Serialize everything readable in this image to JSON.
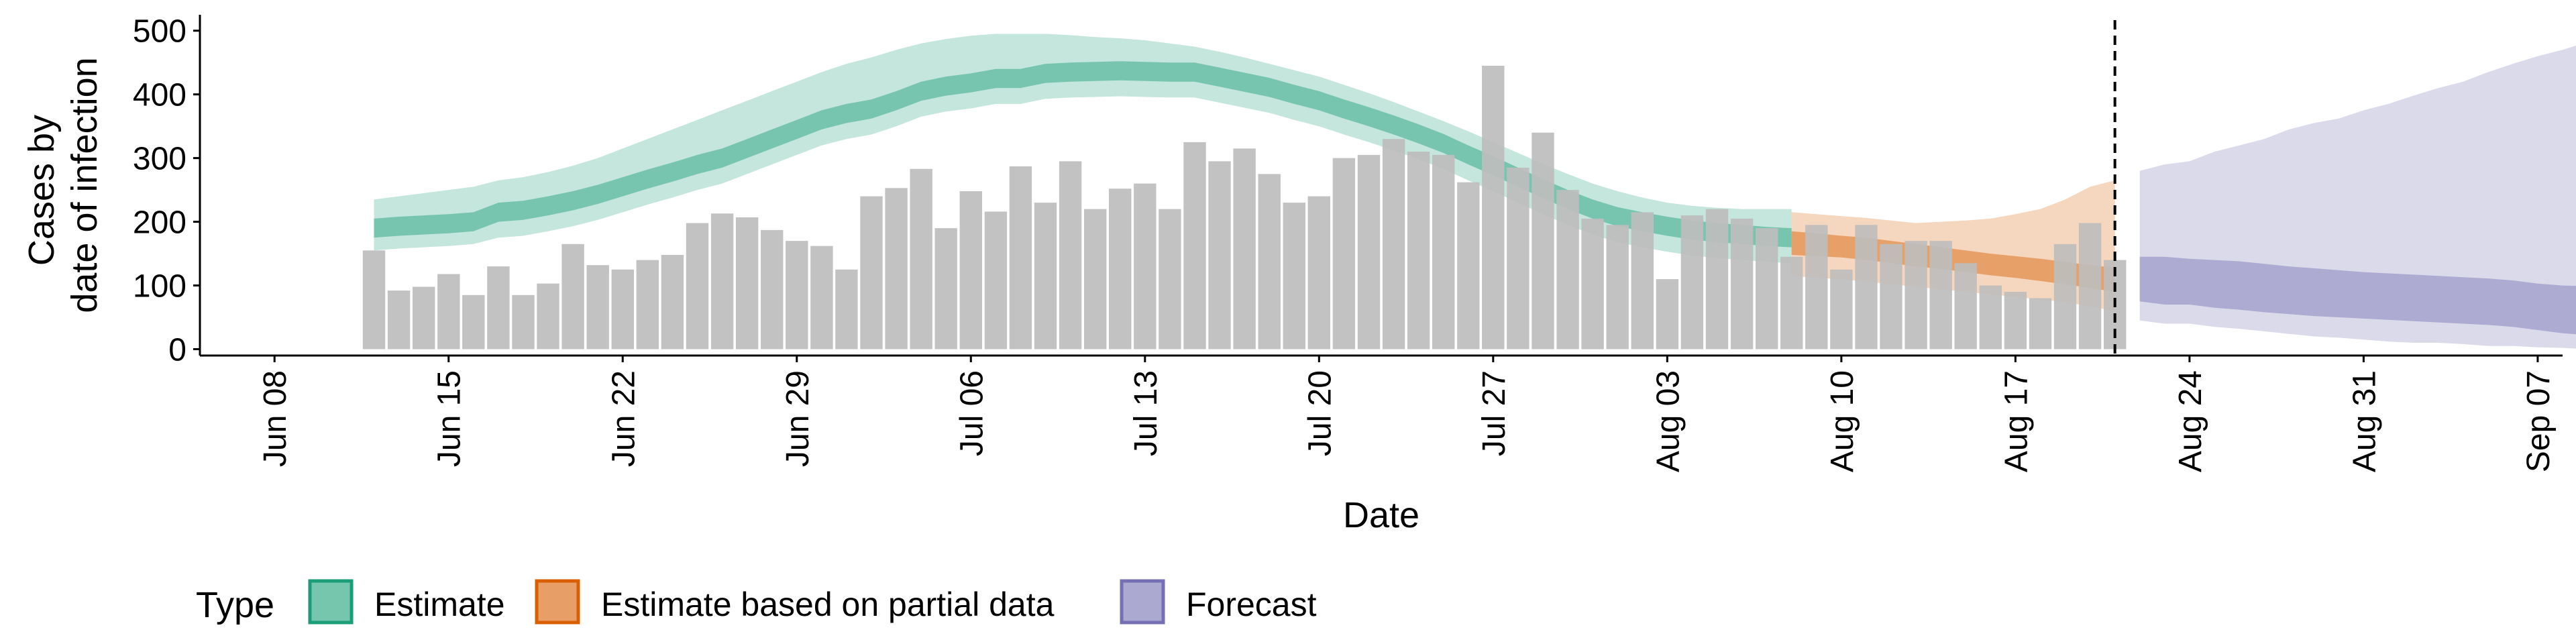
{
  "chart_data": {
    "type": "bar",
    "title": "",
    "xlabel": "Date",
    "ylabel_lines": [
      "Cases by",
      "date of infection"
    ],
    "ylim": [
      -10,
      525
    ],
    "xlim": [
      "2020-06-05",
      "2020-09-08"
    ],
    "y_ticks": [
      0,
      100,
      200,
      300,
      400,
      500
    ],
    "x_ticks": [
      {
        "date": "2020-06-08",
        "label": "Jun 08"
      },
      {
        "date": "2020-06-15",
        "label": "Jun 15"
      },
      {
        "date": "2020-06-22",
        "label": "Jun 22"
      },
      {
        "date": "2020-06-29",
        "label": "Jun 29"
      },
      {
        "date": "2020-07-06",
        "label": "Jul 06"
      },
      {
        "date": "2020-07-13",
        "label": "Jul 13"
      },
      {
        "date": "2020-07-20",
        "label": "Jul 20"
      },
      {
        "date": "2020-07-27",
        "label": "Jul 27"
      },
      {
        "date": "2020-08-03",
        "label": "Aug 03"
      },
      {
        "date": "2020-08-10",
        "label": "Aug 10"
      },
      {
        "date": "2020-08-17",
        "label": "Aug 17"
      },
      {
        "date": "2020-08-24",
        "label": "Aug 24"
      },
      {
        "date": "2020-08-31",
        "label": "Aug 31"
      },
      {
        "date": "2020-09-07",
        "label": "Sep 07"
      }
    ],
    "vline_date": "2020-08-21",
    "bars": {
      "start_date": "2020-06-12",
      "color": "#bdbdbd",
      "values": [
        155,
        92,
        98,
        118,
        85,
        130,
        85,
        103,
        165,
        132,
        125,
        140,
        148,
        198,
        213,
        207,
        187,
        170,
        162,
        125,
        240,
        253,
        283,
        190,
        248,
        216,
        287,
        230,
        295,
        220,
        252,
        260,
        220,
        325,
        295,
        315,
        275,
        230,
        240,
        300,
        305,
        330,
        310,
        305,
        262,
        445,
        285,
        340,
        250,
        205,
        195,
        215,
        110,
        210,
        220,
        205,
        190,
        145,
        195,
        125,
        195,
        165,
        170,
        170,
        135,
        100,
        90,
        80,
        165,
        198,
        140
      ]
    },
    "legend": {
      "title": "Type",
      "placement": "bottom-left",
      "items": [
        {
          "label": "Estimate",
          "fill": "#1b9e77",
          "border": "#1b9e77"
        },
        {
          "label": "Estimate based on partial data",
          "fill": "#d95f02",
          "border": "#d95f02"
        },
        {
          "label": "Forecast",
          "fill": "#7570b3",
          "border": "#7570b3"
        }
      ]
    },
    "series": [
      {
        "name": "Estimate",
        "color": "#1b9e77",
        "start_date": "2020-06-12",
        "inner_lo": [
          175,
          178,
          180,
          182,
          185,
          200,
          203,
          210,
          218,
          228,
          240,
          252,
          263,
          275,
          285,
          300,
          315,
          330,
          345,
          355,
          362,
          375,
          390,
          398,
          403,
          410,
          410,
          418,
          420,
          421,
          422,
          421,
          420,
          420,
          412,
          404,
          396,
          385,
          375,
          362,
          350,
          337,
          323,
          308,
          290,
          273,
          255,
          237,
          220,
          205,
          193,
          185,
          178,
          172,
          168,
          165,
          162,
          160
        ],
        "inner_hi": [
          205,
          208,
          210,
          212,
          215,
          230,
          233,
          240,
          248,
          258,
          270,
          282,
          293,
          305,
          315,
          330,
          345,
          360,
          375,
          385,
          392,
          405,
          420,
          428,
          433,
          440,
          440,
          448,
          450,
          451,
          452,
          451,
          450,
          450,
          442,
          434,
          426,
          415,
          405,
          392,
          380,
          367,
          353,
          338,
          320,
          303,
          285,
          267,
          250,
          235,
          223,
          215,
          208,
          202,
          198,
          195,
          192,
          190
        ],
        "outer_lo": [
          155,
          158,
          160,
          162,
          165,
          175,
          178,
          185,
          193,
          203,
          215,
          227,
          238,
          250,
          260,
          275,
          290,
          305,
          320,
          330,
          337,
          350,
          365,
          373,
          378,
          385,
          385,
          393,
          395,
          396,
          397,
          396,
          395,
          395,
          387,
          379,
          371,
          360,
          350,
          337,
          325,
          312,
          298,
          283,
          265,
          248,
          230,
          212,
          195,
          180,
          168,
          160,
          153,
          147,
          143,
          140,
          137,
          135
        ],
        "outer_hi": [
          235,
          240,
          245,
          250,
          255,
          265,
          270,
          278,
          288,
          300,
          315,
          330,
          345,
          360,
          375,
          390,
          405,
          420,
          435,
          448,
          458,
          470,
          480,
          487,
          492,
          495,
          495,
          495,
          493,
          490,
          488,
          485,
          480,
          475,
          467,
          458,
          448,
          438,
          428,
          415,
          402,
          388,
          373,
          358,
          342,
          325,
          308,
          291,
          275,
          260,
          248,
          238,
          230,
          225,
          222,
          220,
          220,
          220
        ]
      },
      {
        "name": "Estimate based on partial data",
        "color": "#d95f02",
        "start_date": "2020-08-08",
        "inner_lo": [
          148,
          146,
          144,
          140,
          135,
          130,
          126,
          121,
          116,
          112,
          107,
          102,
          96,
          90
        ],
        "inner_hi": [
          185,
          182,
          178,
          175,
          170,
          165,
          160,
          155,
          150,
          146,
          142,
          137,
          132,
          128
        ],
        "outer_lo": [
          115,
          112,
          110,
          106,
          102,
          98,
          94,
          90,
          86,
          82,
          78,
          74,
          67,
          60
        ],
        "outer_hi": [
          215,
          212,
          209,
          206,
          202,
          198,
          200,
          202,
          205,
          212,
          220,
          235,
          255,
          265
        ]
      },
      {
        "name": "Forecast",
        "color": "#7570b3",
        "start_date": "2020-08-22",
        "inner_lo": [
          75,
          70,
          70,
          65,
          62,
          58,
          55,
          52,
          50,
          48,
          46,
          44,
          42,
          40,
          38,
          35,
          30,
          25,
          22,
          20
        ],
        "inner_hi": [
          145,
          145,
          142,
          140,
          138,
          134,
          130,
          127,
          124,
          121,
          119,
          117,
          115,
          113,
          111,
          108,
          103,
          100,
          99,
          97
        ],
        "outer_lo": [
          45,
          40,
          40,
          35,
          32,
          28,
          24,
          20,
          18,
          15,
          12,
          10,
          10,
          8,
          5,
          5,
          3,
          2,
          0,
          0
        ],
        "outer_hi": [
          280,
          290,
          295,
          310,
          320,
          330,
          345,
          355,
          362,
          375,
          385,
          398,
          410,
          420,
          435,
          448,
          460,
          470,
          482,
          495
        ]
      }
    ]
  }
}
